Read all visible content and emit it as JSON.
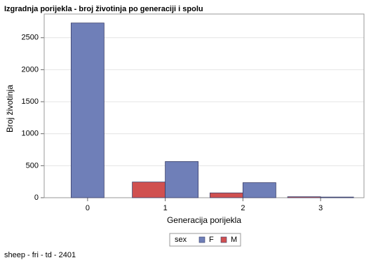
{
  "chart_data": {
    "type": "bar",
    "title": "Izgradnja porijekla - broj životinja po generaciji i spolu",
    "x_label": "Generacija porijekla",
    "y_label": "Broj životinja",
    "categories": [
      "0",
      "1",
      "2",
      "3"
    ],
    "series": [
      {
        "name": "F",
        "color": "#6f7fb8",
        "values": [
          2730,
          565,
          235,
          10
        ]
      },
      {
        "name": "M",
        "color": "#d05050",
        "values": [
          null,
          245,
          75,
          15
        ]
      }
    ],
    "ylim": [
      0,
      2870
    ],
    "yticks": [
      0,
      500,
      1000,
      1500,
      2000,
      2500
    ],
    "grid": true,
    "legend_title": "sex",
    "legend_position": "bottom",
    "footnote": "sheep - fri - td - 2401"
  }
}
